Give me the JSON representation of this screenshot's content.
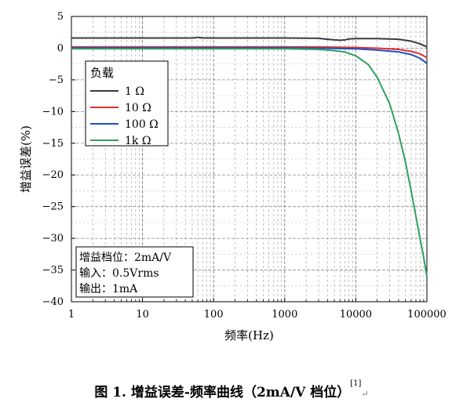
{
  "chart_data": {
    "type": "line",
    "xlabel": "频率(Hz)",
    "ylabel": "增益误差(%)",
    "x_scale": "log",
    "xlim": [
      1,
      100000
    ],
    "ylim": [
      -40,
      5
    ],
    "x_ticks": [
      1,
      10,
      100,
      1000,
      10000,
      100000
    ],
    "x_tick_labels": [
      "1",
      "10",
      "100",
      "1000",
      "10000",
      "100000"
    ],
    "y_ticks": [
      5,
      0,
      -5,
      -10,
      -15,
      -20,
      -25,
      -30,
      -35,
      -40
    ],
    "y_tick_labels": [
      "5",
      "0",
      "−5",
      "−10",
      "−15",
      "−20",
      "−25",
      "−30",
      "−35",
      "−40"
    ],
    "grid": true,
    "legend_title": "负载",
    "legend_position": "top-left",
    "series": [
      {
        "name": "1 Ω",
        "color": "#3a3a3a",
        "x": [
          1,
          10,
          50,
          60,
          70,
          100,
          300,
          1000,
          3000,
          4000,
          5000,
          6000,
          7000,
          8000,
          10000,
          20000,
          40000,
          60000,
          80000,
          100000
        ],
        "y": [
          1.6,
          1.6,
          1.6,
          1.7,
          1.6,
          1.6,
          1.6,
          1.6,
          1.55,
          1.4,
          1.3,
          1.25,
          1.3,
          1.45,
          1.5,
          1.5,
          1.4,
          1.1,
          0.7,
          0.2
        ]
      },
      {
        "name": "10 Ω",
        "color": "#e03030",
        "x": [
          1,
          10,
          100,
          1000,
          3000,
          10000,
          20000,
          40000,
          60000,
          80000,
          100000
        ],
        "y": [
          0.2,
          0.2,
          0.2,
          0.2,
          0.2,
          0.1,
          0.0,
          -0.2,
          -0.5,
          -0.9,
          -1.5
        ]
      },
      {
        "name": "100 Ω",
        "color": "#2050c0",
        "x": [
          1,
          10,
          100,
          1000,
          3000,
          10000,
          20000,
          40000,
          60000,
          80000,
          100000
        ],
        "y": [
          0.05,
          0.05,
          0.05,
          0.05,
          0.0,
          -0.1,
          -0.3,
          -0.6,
          -1.0,
          -1.6,
          -2.4
        ]
      },
      {
        "name": "1k Ω",
        "color": "#30a060",
        "x": [
          1,
          10,
          100,
          1000,
          3000,
          5000,
          7000,
          10000,
          15000,
          20000,
          30000,
          40000,
          50000,
          60000,
          70000,
          80000,
          90000,
          100000
        ],
        "y": [
          -0.1,
          -0.1,
          -0.1,
          -0.1,
          -0.2,
          -0.4,
          -0.6,
          -1.2,
          -2.6,
          -4.6,
          -8.8,
          -13.5,
          -18.0,
          -22.5,
          -26.5,
          -30.0,
          -33.0,
          -36.0
        ]
      }
    ],
    "annotation_lines": [
      "增益档位：2mA/V",
      "输入：0.5Vrms",
      "输出：1mA"
    ]
  },
  "caption": {
    "text": "图 1. 增益误差-频率曲线（2mA/V  档位）",
    "ref": "[1]",
    "return_mark": "↵"
  }
}
